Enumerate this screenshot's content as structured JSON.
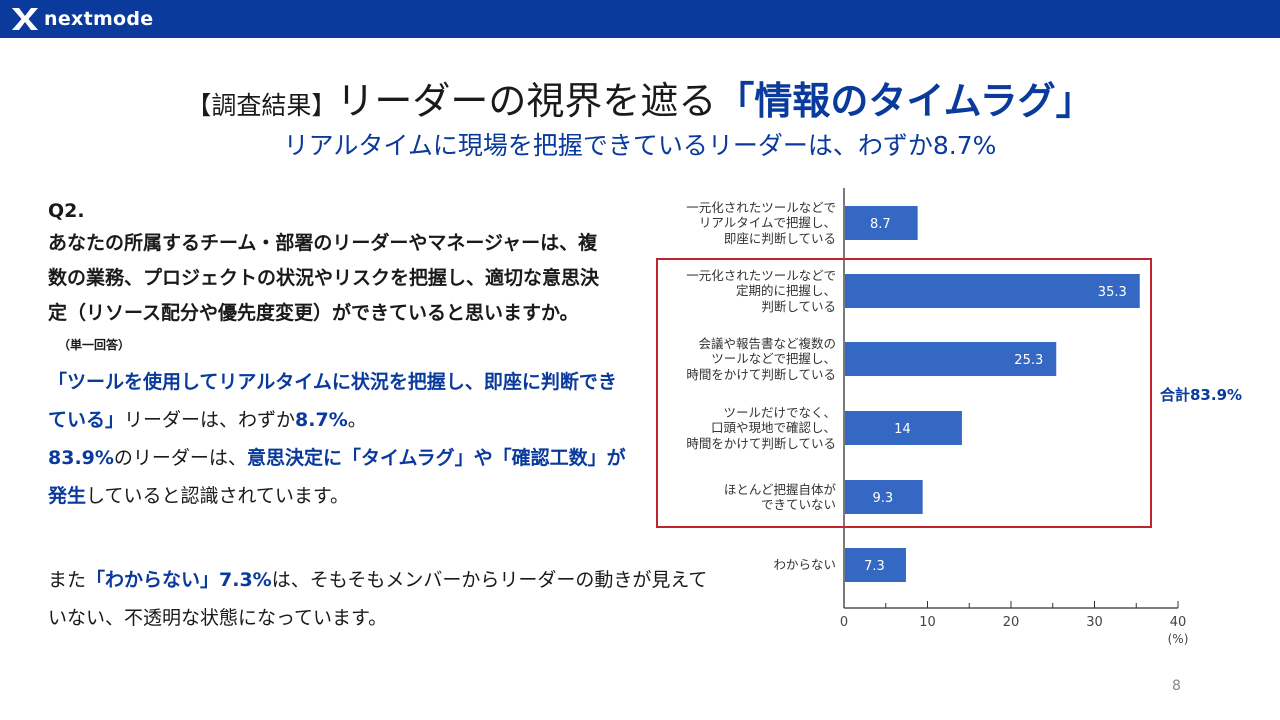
{
  "brand": {
    "name": "nextmode"
  },
  "title": {
    "bracket": "【調査結果】",
    "main": "リーダーの視界を遮る",
    "accent": "「情報のタイムラグ」"
  },
  "subtitle": "リアルタイムに現場を把握できているリーダーは、わずか8.7%",
  "question": {
    "label": "Q2.",
    "text": "あなたの所属するチーム・部署のリーダーやマネージャーは、複数の業務、プロジェクトの状況やリスクを把握し、適切な意思決定（リソース配分や優先度変更）ができていると思いますか。",
    "note": "（単一回答）"
  },
  "summary": {
    "p1_a": "「ツールを使用してリアルタイムに状況を把握し、即座に判断できている」",
    "p1_b": "リーダーは、わずか",
    "p1_c": "8.7%",
    "p1_d": "。",
    "p2_a": "83.9%",
    "p2_b": "のリーダーは、",
    "p2_c": "意思決定に「タイムラグ」や「確認工数」が発生",
    "p2_d": "していると認識されています。",
    "p3_a": "また",
    "p3_b": "「わからない」7.3%",
    "p3_c": "は、そもそもメンバーからリーダーの動きが見えていない、不透明な状態になっています。"
  },
  "total_label": "合計83.9%",
  "page_number": "8",
  "colors": {
    "brand": "#0a3a9c",
    "bar": "#3568c3",
    "highlight": "#c0242c"
  },
  "chart_data": {
    "type": "bar",
    "orientation": "horizontal",
    "categories": [
      [
        "一元化されたツールなどで",
        "リアルタイムで把握し、",
        "即座に判断している"
      ],
      [
        "一元化されたツールなどで",
        "定期的に把握し、",
        "判断している"
      ],
      [
        "会議や報告書など複数の",
        "ツールなどで把握し、",
        "時間をかけて判断している"
      ],
      [
        "ツールだけでなく、",
        "口頭や現地で確認し、",
        "時間をかけて判断している"
      ],
      [
        "ほとんど把握自体が",
        "できていない"
      ],
      [
        "わからない"
      ]
    ],
    "values": [
      8.7,
      35.3,
      25.3,
      14,
      9.3,
      7.3
    ],
    "value_labels": [
      "8.7",
      "35.3",
      "25.3",
      "14",
      "9.3",
      "7.3"
    ],
    "xlim": [
      0,
      40
    ],
    "xticks": [
      "0",
      "10",
      "20",
      "30",
      "40"
    ],
    "xunit": "(%)",
    "grid": false
  }
}
